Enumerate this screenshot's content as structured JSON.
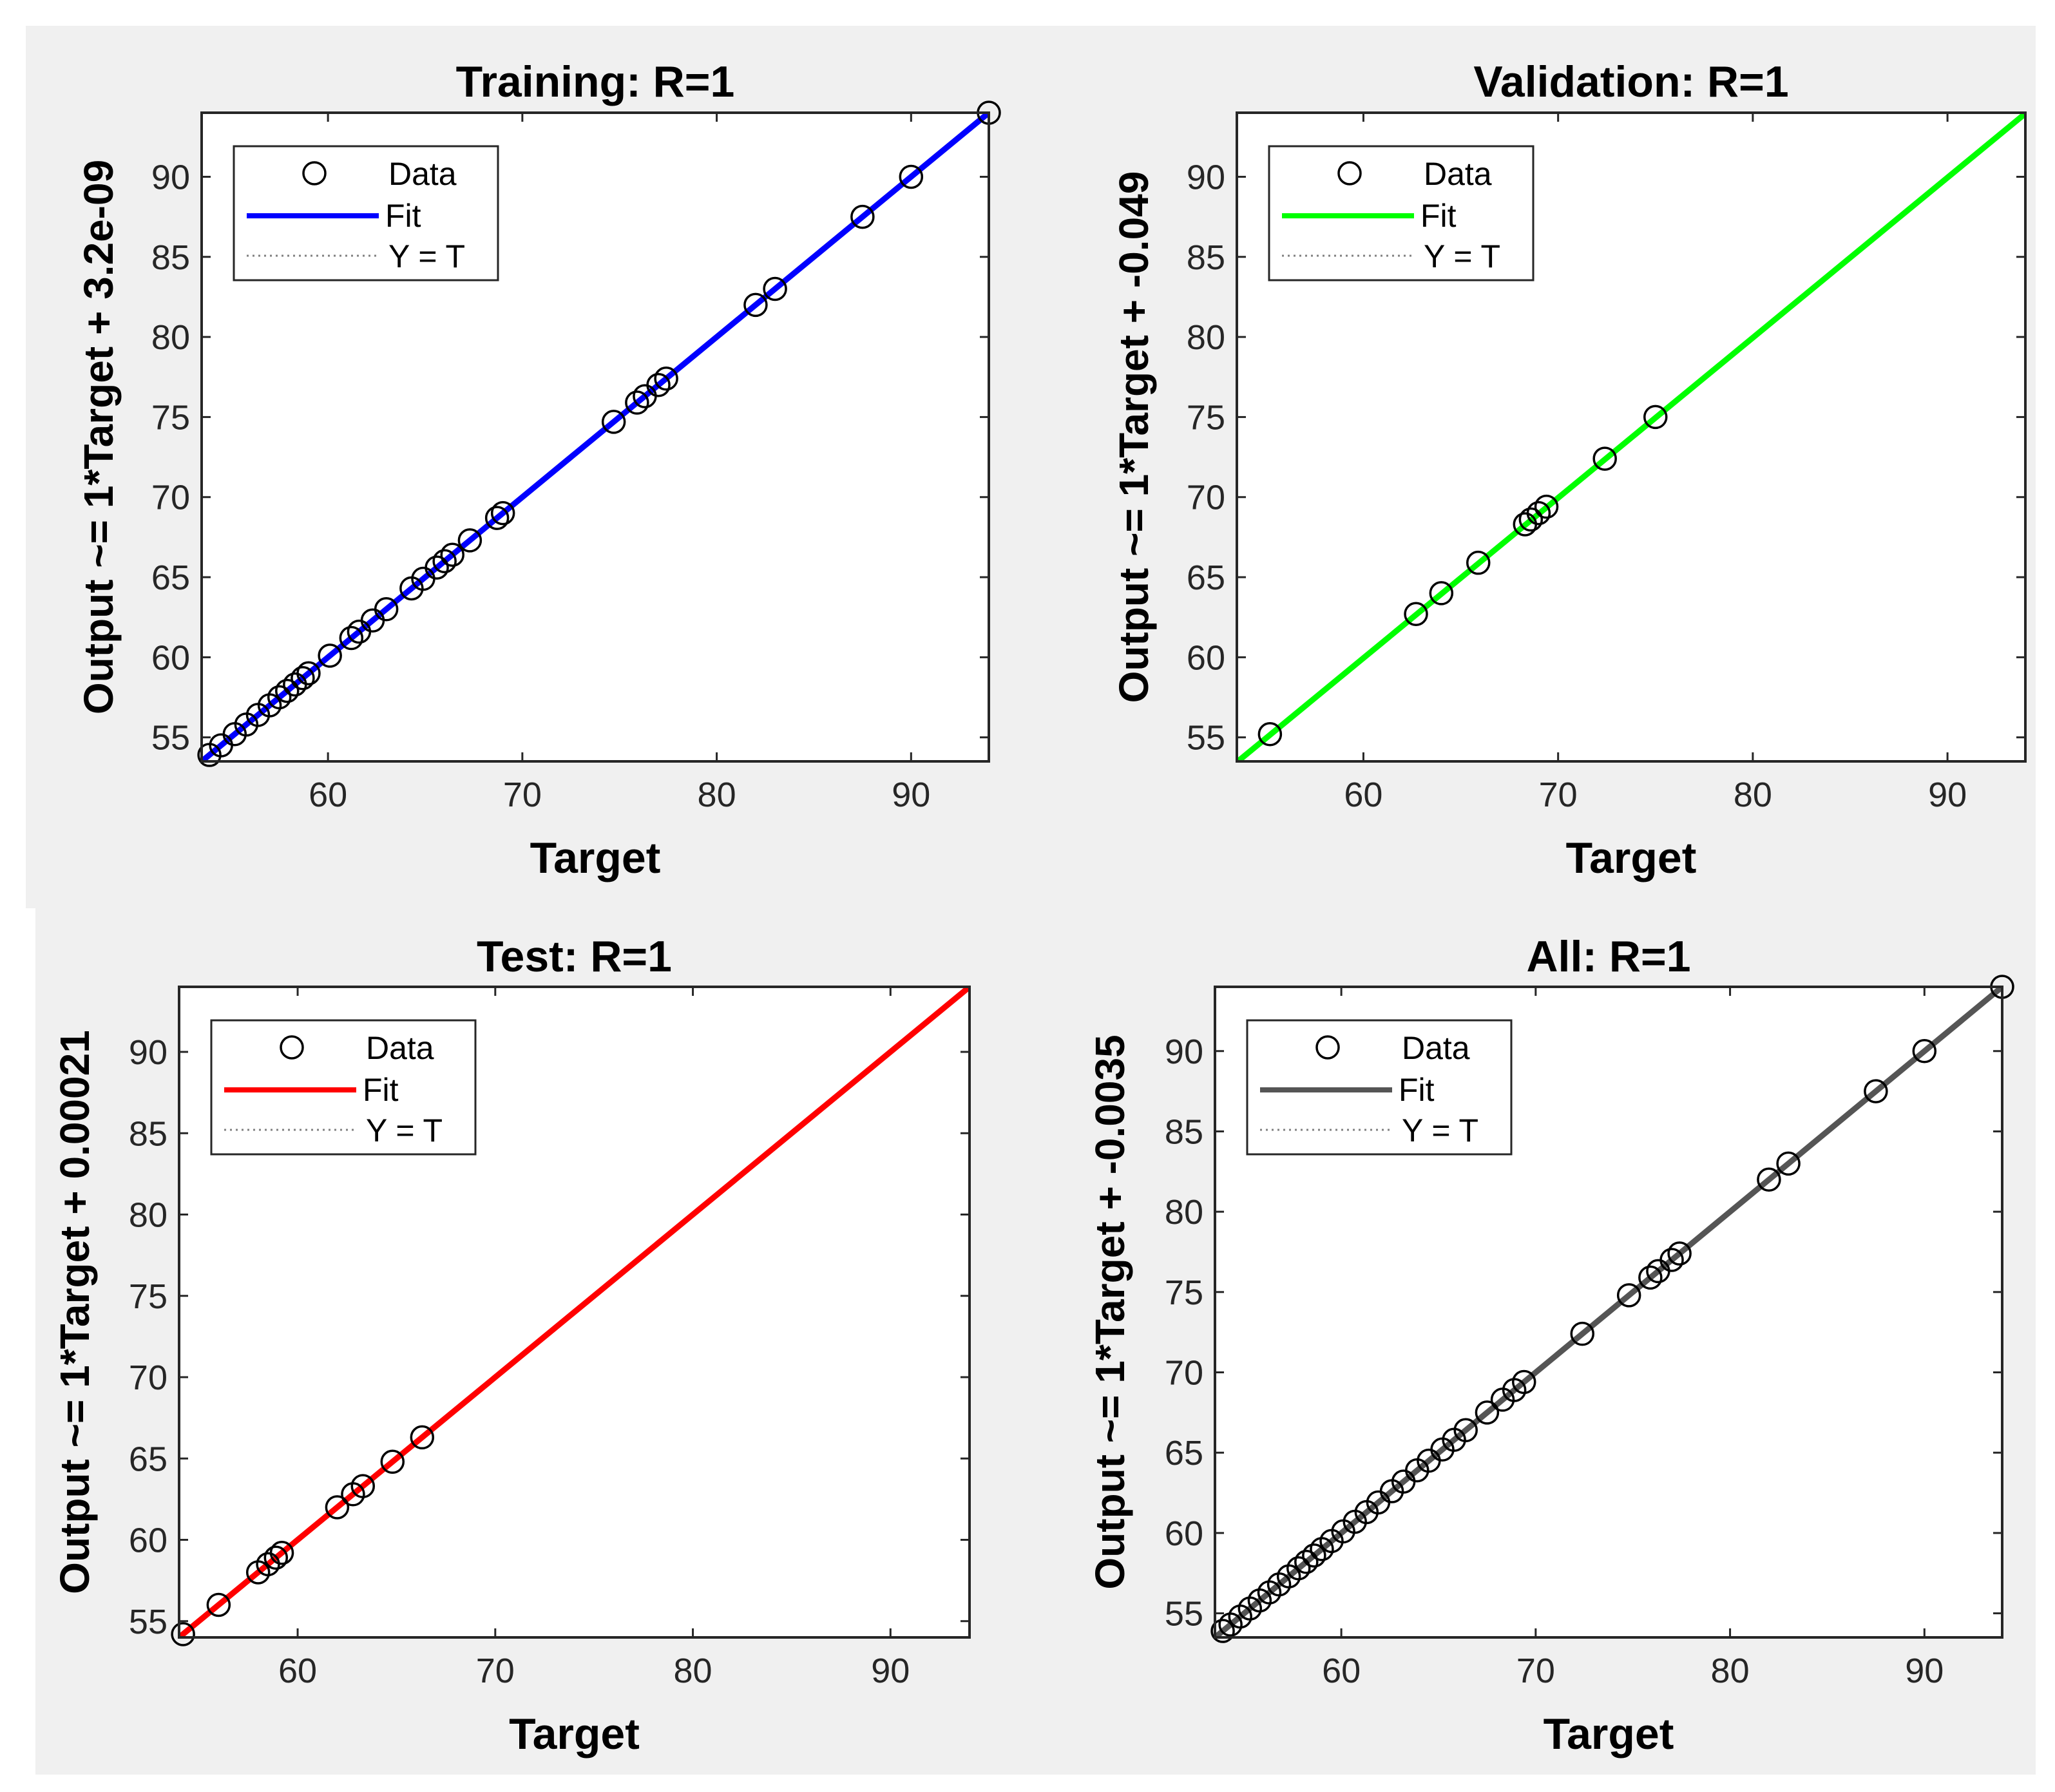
{
  "chart_data": [
    {
      "type": "scatter",
      "title": "Training: R=1",
      "xlabel": "Target",
      "ylabel": "Output ~= 1*Target + 3.2e-09",
      "xlim": [
        53.5,
        94
      ],
      "ylim": [
        53.5,
        94
      ],
      "xticks": [
        60,
        70,
        80,
        90
      ],
      "yticks": [
        55,
        60,
        65,
        70,
        75,
        80,
        85,
        90
      ],
      "fit_color": "#0000ff",
      "legend": {
        "data": "Data",
        "fit": "Fit",
        "identity": "Y = T",
        "placement": "top-left"
      },
      "fit": {
        "slope": 1,
        "intercept": 3.2e-09
      },
      "points": [
        53.9,
        54.5,
        55.2,
        55.8,
        56.4,
        57.0,
        57.5,
        57.9,
        58.3,
        58.7,
        59.0,
        60.1,
        61.2,
        61.6,
        62.3,
        63.0,
        64.3,
        64.9,
        65.6,
        66.0,
        66.4,
        67.3,
        68.7,
        69.0,
        74.7,
        75.9,
        76.3,
        77.0,
        77.4,
        82.0,
        83.0,
        87.5,
        90.0,
        94.0
      ]
    },
    {
      "type": "scatter",
      "title": "Validation: R=1",
      "xlabel": "Target",
      "ylabel": "Output ~= 1*Target + -0.049",
      "xlim": [
        53.5,
        94
      ],
      "ylim": [
        53.5,
        94
      ],
      "xticks": [
        60,
        70,
        80,
        90
      ],
      "yticks": [
        55,
        60,
        65,
        70,
        75,
        80,
        85,
        90
      ],
      "fit_color": "#00ff00",
      "legend": {
        "data": "Data",
        "fit": "Fit",
        "identity": "Y = T",
        "placement": "top-left"
      },
      "fit": {
        "slope": 1,
        "intercept": -0.049
      },
      "points": [
        55.2,
        62.7,
        64.0,
        65.9,
        68.3,
        68.6,
        69.0,
        69.4,
        72.4,
        75.0
      ]
    },
    {
      "type": "scatter",
      "title": "Test: R=1",
      "xlabel": "Target",
      "ylabel": "Output ~= 1*Target + 0.00021",
      "xlim": [
        54,
        94
      ],
      "ylim": [
        54,
        94
      ],
      "xticks": [
        60,
        70,
        80,
        90
      ],
      "yticks": [
        55,
        60,
        65,
        70,
        75,
        80,
        85,
        90
      ],
      "fit_color": "#ff0000",
      "legend": {
        "data": "Data",
        "fit": "Fit",
        "identity": "Y = T",
        "placement": "top-left"
      },
      "fit": {
        "slope": 1,
        "intercept": 0.00021
      },
      "points": [
        54.2,
        56.0,
        58.0,
        58.5,
        58.9,
        59.2,
        62.0,
        62.8,
        63.3,
        64.8,
        66.3
      ]
    },
    {
      "type": "scatter",
      "title": "All: R=1",
      "xlabel": "Target",
      "ylabel": "Output ~= 1*Target + -0.0035",
      "xlim": [
        53.5,
        94
      ],
      "ylim": [
        53.5,
        94
      ],
      "xticks": [
        60,
        70,
        80,
        90
      ],
      "yticks": [
        55,
        60,
        65,
        70,
        75,
        80,
        85,
        90
      ],
      "fit_color": "#555555",
      "legend": {
        "data": "Data",
        "fit": "Fit",
        "identity": "Y = T",
        "placement": "top-left"
      },
      "fit": {
        "slope": 1,
        "intercept": -0.0035
      },
      "points": [
        53.9,
        54.3,
        54.8,
        55.3,
        55.8,
        56.3,
        56.8,
        57.3,
        57.8,
        58.2,
        58.6,
        59.0,
        59.5,
        60.1,
        60.7,
        61.3,
        61.9,
        62.6,
        63.2,
        63.9,
        64.5,
        65.2,
        65.8,
        66.4,
        67.5,
        68.3,
        68.9,
        69.4,
        72.4,
        74.8,
        75.9,
        76.3,
        77.0,
        77.4,
        82.0,
        83.0,
        87.5,
        90.0,
        94.0
      ]
    }
  ]
}
